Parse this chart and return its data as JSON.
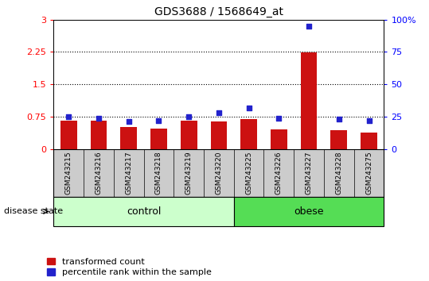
{
  "title": "GDS3688 / 1568649_at",
  "samples": [
    "GSM243215",
    "GSM243216",
    "GSM243217",
    "GSM243218",
    "GSM243219",
    "GSM243220",
    "GSM243225",
    "GSM243226",
    "GSM243227",
    "GSM243228",
    "GSM243275"
  ],
  "transformed_count": [
    0.65,
    0.65,
    0.5,
    0.47,
    0.65,
    0.63,
    0.7,
    0.45,
    2.24,
    0.44,
    0.38
  ],
  "percentile_rank": [
    25.0,
    24.0,
    21.0,
    22.0,
    25.0,
    28.0,
    32.0,
    24.0,
    95.0,
    23.0,
    22.0
  ],
  "control_indices": [
    0,
    1,
    2,
    3,
    4,
    5
  ],
  "obese_indices": [
    6,
    7,
    8,
    9,
    10
  ],
  "control_color": "#ccffcc",
  "obese_color": "#55dd55",
  "bar_color": "#cc1111",
  "dot_color": "#2222cc",
  "tick_bg_color": "#cccccc",
  "ylim_left": [
    0,
    3.0
  ],
  "ylim_right": [
    0,
    100
  ],
  "yticks_left": [
    0,
    0.75,
    1.5,
    2.25,
    3.0
  ],
  "yticks_right": [
    0,
    25,
    50,
    75,
    100
  ],
  "ytick_labels_left": [
    "0",
    "0.75",
    "1.5",
    "2.25",
    "3"
  ],
  "ytick_labels_right": [
    "0",
    "25",
    "50",
    "75",
    "100%"
  ],
  "hlines": [
    0.75,
    1.5,
    2.25
  ],
  "legend_bar_label": "transformed count",
  "legend_dot_label": "percentile rank within the sample",
  "group_label_control": "control",
  "group_label_obese": "obese",
  "disease_state_label": "disease state"
}
